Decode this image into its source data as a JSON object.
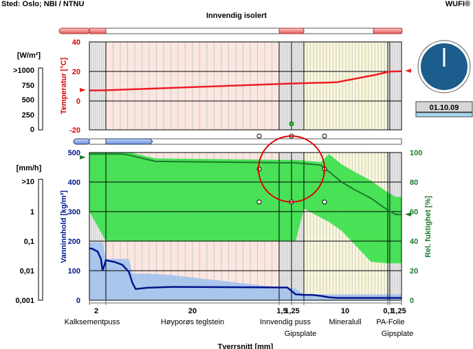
{
  "header": {
    "location": "Sted: Oslo; NBI / NTNU",
    "brand": "WUFI®",
    "title": "Innvendig isolert"
  },
  "upper_chart": {
    "y_left_label": "Temperatur [°C]",
    "y_ticks": [
      "40",
      "20",
      "0",
      "-20"
    ],
    "y_range": [
      -20,
      40
    ],
    "temperature_profile": {
      "x_mm": [
        0,
        20,
        240,
        270,
        290,
        300,
        345,
        365,
        375
      ],
      "y_c": [
        6.8,
        7.0,
        11.5,
        12.0,
        12.3,
        12.6,
        17.5,
        19.8,
        20.0
      ]
    }
  },
  "heat_flux_gauge": {
    "label": "[W/m²]",
    "ticks": [
      ">1000",
      "750",
      "500",
      "250",
      "0"
    ]
  },
  "clock": {
    "date": "01.10.09"
  },
  "lower_chart": {
    "y_left_label": "Vanninnhold [kg/m³]",
    "y_left_ticks": [
      "500",
      "400",
      "300",
      "200",
      "100",
      "0"
    ],
    "y_left_range": [
      0,
      500
    ],
    "y_right_label": "Rel. fuktighet [%]",
    "y_right_ticks": [
      "100",
      "80",
      "60",
      "40",
      "20",
      "0"
    ],
    "y_right_range": [
      0,
      100
    ],
    "relative_humidity_profile": {
      "x_mm": [
        0,
        20,
        40,
        50,
        80,
        240,
        250,
        260,
        270,
        280,
        290,
        305,
        320,
        340,
        360,
        368,
        370,
        375
      ],
      "y_pct": [
        99,
        99,
        99,
        98,
        94,
        93,
        93,
        92.5,
        92,
        91.5,
        87,
        80,
        75,
        69,
        61,
        59,
        58,
        58
      ]
    },
    "water_content_profile": {
      "x_mm": [
        0,
        3,
        10,
        14,
        16,
        20,
        30,
        40,
        48,
        52,
        56,
        70,
        100,
        240,
        250,
        260,
        270,
        280,
        290,
        300,
        360,
        368,
        375
      ],
      "y_kgm3": [
        175,
        175,
        165,
        140,
        100,
        135,
        130,
        120,
        95,
        60,
        38,
        42,
        45,
        43,
        20,
        18,
        18,
        15,
        10,
        8,
        8,
        8,
        8
      ]
    }
  },
  "water_gauge": {
    "label": "[mm/h]",
    "ticks": [
      ">10",
      "1",
      "0,1",
      "0,01",
      "0,001"
    ]
  },
  "x_axis": {
    "thickness_labels": [
      {
        "text": "2",
        "x_mm": 1.5
      },
      {
        "text": "20",
        "x_mm": 90
      },
      {
        "text": "1,5",
        "x_mm": 252
      },
      {
        "text": "1,25",
        "x_mm": 265
      },
      {
        "text": "10",
        "x_mm": 315
      },
      {
        "text": "0,1",
        "x_mm": 360
      },
      {
        "text": "1,25",
        "x_mm": 368
      }
    ],
    "layer_labels": [
      {
        "text": "Kalksementpuss",
        "x_mm": 10,
        "row": 1
      },
      {
        "text": "Høyporøs teglstein",
        "x_mm": 90,
        "row": 1
      },
      {
        "text": "Innvendig puss",
        "x_mm": 252,
        "row": 1
      },
      {
        "text": "Gipsplate",
        "x_mm": 265,
        "row": 2
      },
      {
        "text": "Mineralull",
        "x_mm": 315,
        "row": 1
      },
      {
        "text": "PA-Folie",
        "x_mm": 360,
        "row": 1
      },
      {
        "text": "Gipsplate",
        "x_mm": 368,
        "row": 2
      }
    ],
    "bottom_label": "Tverrsnitt [mm]"
  },
  "colors": {
    "temperature": "#ee1c24",
    "humidity": "#1a7a2a",
    "humidity_band": "#40e050",
    "water": "#00148c",
    "water_band": "#a6c4ec",
    "clock_face": "#1b5d8c",
    "highlight_circle": "#dd0000"
  }
}
